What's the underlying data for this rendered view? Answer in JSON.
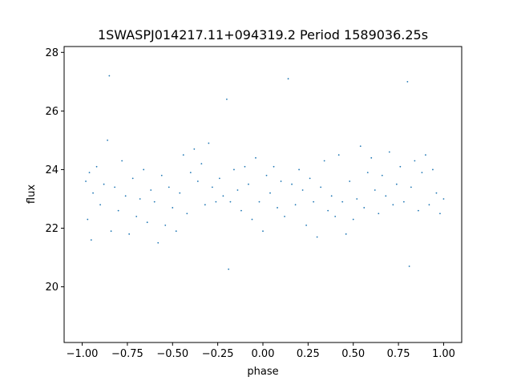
{
  "chart_data": {
    "type": "scatter",
    "title": "1SWASPJ014217.11+094319.2 Period 1589036.25s",
    "xlabel": "phase",
    "ylabel": "flux",
    "xlim": [
      -1.1,
      1.1
    ],
    "ylim": [
      18.1,
      28.2
    ],
    "x_ticks": [
      -1.0,
      -0.75,
      -0.5,
      -0.25,
      0.0,
      0.25,
      0.5,
      0.75,
      1.0
    ],
    "x_tick_labels": [
      "−1.00",
      "−0.75",
      "−0.50",
      "−0.25",
      "0.00",
      "0.25",
      "0.50",
      "0.75",
      "1.00"
    ],
    "y_ticks": [
      20,
      22,
      24,
      26,
      28
    ],
    "y_tick_labels": [
      "20",
      "22",
      "24",
      "26",
      "28"
    ],
    "grid": false,
    "marker_color": "#1f77b4",
    "series": [
      {
        "points": [
          [
            -0.98,
            23.6
          ],
          [
            -0.97,
            22.3
          ],
          [
            -0.96,
            23.9
          ],
          [
            -0.95,
            21.6
          ],
          [
            -0.94,
            23.2
          ],
          [
            -0.92,
            24.1
          ],
          [
            -0.9,
            22.8
          ],
          [
            -0.88,
            23.5
          ],
          [
            -0.86,
            25.0
          ],
          [
            -0.85,
            27.2
          ],
          [
            -0.84,
            21.9
          ],
          [
            -0.82,
            23.4
          ],
          [
            -0.8,
            22.6
          ],
          [
            -0.78,
            24.3
          ],
          [
            -0.76,
            23.1
          ],
          [
            -0.74,
            21.8
          ],
          [
            -0.72,
            23.7
          ],
          [
            -0.7,
            22.4
          ],
          [
            -0.68,
            23.0
          ],
          [
            -0.66,
            24.0
          ],
          [
            -0.64,
            22.2
          ],
          [
            -0.62,
            23.3
          ],
          [
            -0.6,
            22.9
          ],
          [
            -0.58,
            21.5
          ],
          [
            -0.56,
            23.8
          ],
          [
            -0.54,
            22.1
          ],
          [
            -0.52,
            23.4
          ],
          [
            -0.5,
            22.7
          ],
          [
            -0.48,
            21.9
          ],
          [
            -0.46,
            23.2
          ],
          [
            -0.44,
            24.5
          ],
          [
            -0.42,
            22.5
          ],
          [
            -0.4,
            23.9
          ],
          [
            -0.38,
            24.7
          ],
          [
            -0.36,
            23.6
          ],
          [
            -0.34,
            24.2
          ],
          [
            -0.32,
            22.8
          ],
          [
            -0.3,
            24.9
          ],
          [
            -0.28,
            23.4
          ],
          [
            -0.26,
            22.9
          ],
          [
            -0.24,
            23.7
          ],
          [
            -0.22,
            23.1
          ],
          [
            -0.2,
            26.4
          ],
          [
            -0.19,
            20.6
          ],
          [
            -0.18,
            22.9
          ],
          [
            -0.16,
            24.0
          ],
          [
            -0.14,
            23.3
          ],
          [
            -0.12,
            22.6
          ],
          [
            -0.1,
            24.1
          ],
          [
            -0.08,
            23.5
          ],
          [
            -0.06,
            22.3
          ],
          [
            -0.04,
            24.4
          ],
          [
            -0.02,
            22.9
          ],
          [
            0.0,
            21.9
          ],
          [
            0.02,
            23.8
          ],
          [
            0.04,
            23.2
          ],
          [
            0.06,
            24.1
          ],
          [
            0.08,
            22.7
          ],
          [
            0.1,
            23.6
          ],
          [
            0.12,
            22.4
          ],
          [
            0.14,
            27.1
          ],
          [
            0.16,
            23.5
          ],
          [
            0.18,
            22.8
          ],
          [
            0.2,
            24.0
          ],
          [
            0.22,
            23.3
          ],
          [
            0.24,
            22.1
          ],
          [
            0.26,
            23.7
          ],
          [
            0.28,
            22.9
          ],
          [
            0.3,
            21.7
          ],
          [
            0.32,
            23.4
          ],
          [
            0.34,
            24.3
          ],
          [
            0.36,
            22.6
          ],
          [
            0.38,
            23.1
          ],
          [
            0.4,
            22.4
          ],
          [
            0.42,
            24.5
          ],
          [
            0.44,
            22.9
          ],
          [
            0.46,
            21.8
          ],
          [
            0.48,
            23.6
          ],
          [
            0.5,
            22.3
          ],
          [
            0.52,
            23.0
          ],
          [
            0.54,
            24.8
          ],
          [
            0.56,
            22.7
          ],
          [
            0.58,
            23.9
          ],
          [
            0.6,
            24.4
          ],
          [
            0.62,
            23.3
          ],
          [
            0.64,
            22.5
          ],
          [
            0.66,
            23.8
          ],
          [
            0.68,
            23.1
          ],
          [
            0.7,
            24.6
          ],
          [
            0.72,
            22.8
          ],
          [
            0.74,
            23.5
          ],
          [
            0.76,
            24.1
          ],
          [
            0.78,
            22.9
          ],
          [
            0.8,
            27.0
          ],
          [
            0.81,
            20.7
          ],
          [
            0.82,
            23.4
          ],
          [
            0.84,
            24.3
          ],
          [
            0.86,
            22.6
          ],
          [
            0.88,
            23.9
          ],
          [
            0.9,
            24.5
          ],
          [
            0.92,
            22.8
          ],
          [
            0.94,
            24.0
          ],
          [
            0.96,
            23.2
          ],
          [
            0.98,
            22.5
          ],
          [
            1.0,
            23.0
          ]
        ]
      }
    ]
  }
}
